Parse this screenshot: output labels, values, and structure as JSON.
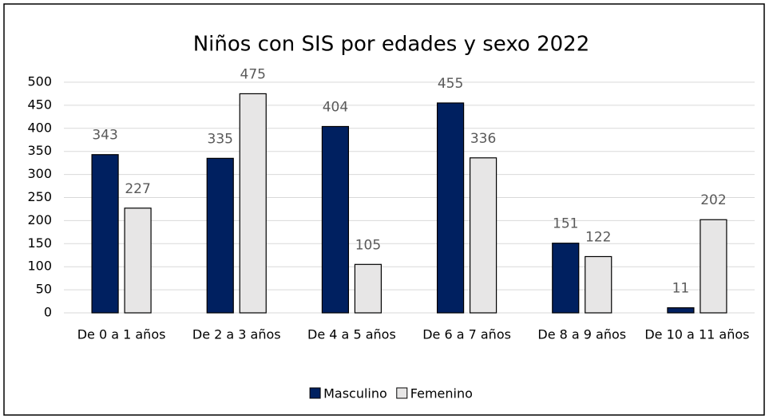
{
  "chart_data": {
    "type": "bar",
    "title": "Niños con SIS por edades y sexo 2022",
    "categories": [
      "De 0 a 1 años",
      "De 2 a 3 años",
      "De 4 a 5 años",
      "De 6 a 7 años",
      "De 8 a 9 años",
      "De 10 a 11 años"
    ],
    "series": [
      {
        "name": "Masculino",
        "color": "#002060",
        "values": [
          343,
          335,
          404,
          455,
          151,
          11
        ]
      },
      {
        "name": "Femenino",
        "color": "#e7e6e6",
        "values": [
          227,
          475,
          105,
          336,
          122,
          202
        ]
      }
    ],
    "ylim": [
      0,
      500
    ],
    "yticks": [
      0,
      50,
      100,
      150,
      200,
      250,
      300,
      350,
      400,
      450,
      500
    ],
    "grid": true,
    "legend": "bottom"
  }
}
